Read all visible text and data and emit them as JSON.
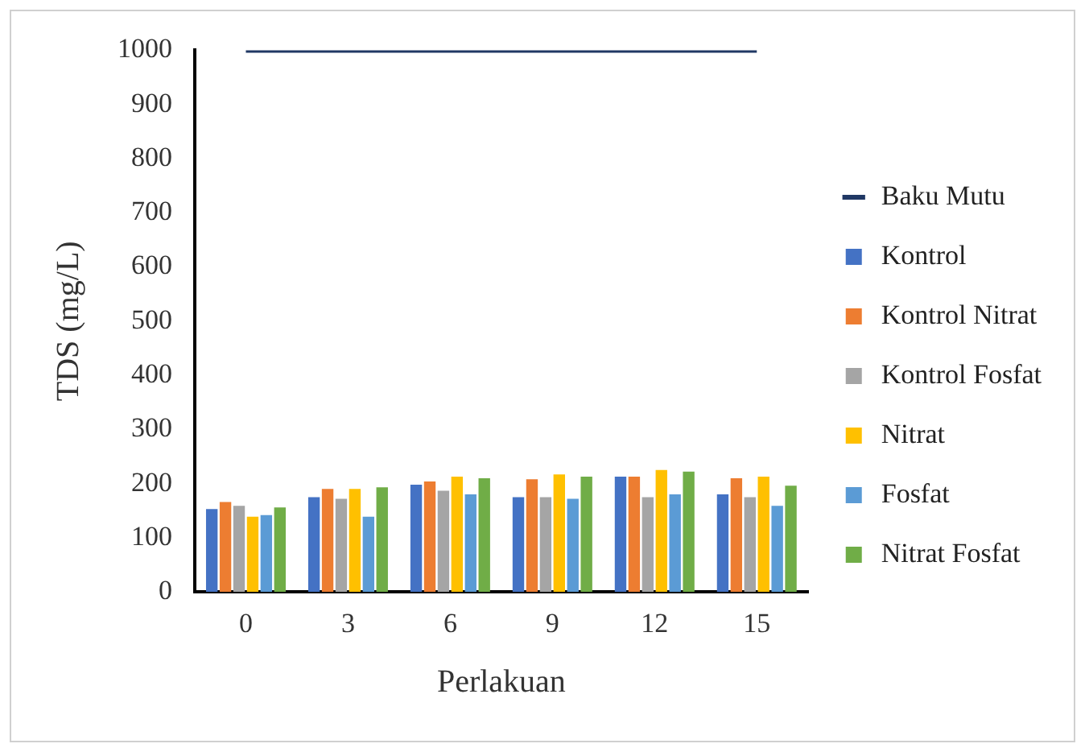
{
  "chart_data": {
    "type": "bar",
    "xlabel": "Perlakuan",
    "ylabel": "TDS (mg/L)",
    "categories": [
      "0",
      "3",
      "6",
      "9",
      "12",
      "15"
    ],
    "ylim": [
      0,
      1000
    ],
    "yticks": [
      0,
      100,
      200,
      300,
      400,
      500,
      600,
      700,
      800,
      900,
      1000
    ],
    "grid": false,
    "legend": "right",
    "series": [
      {
        "name": "Kontrol",
        "color": "#4472c4",
        "values": [
          153,
          175,
          198,
          175,
          213,
          180
        ]
      },
      {
        "name": "Kontrol Nitrat",
        "color": "#ed7d31",
        "values": [
          166,
          190,
          204,
          208,
          213,
          210
        ]
      },
      {
        "name": "Kontrol Fosfat",
        "color": "#a5a5a5",
        "values": [
          159,
          172,
          187,
          175,
          175,
          175
        ]
      },
      {
        "name": "Nitrat",
        "color": "#ffc000",
        "values": [
          139,
          190,
          213,
          217,
          225,
          213
        ]
      },
      {
        "name": "Fosfat",
        "color": "#5b9bd5",
        "values": [
          142,
          139,
          180,
          172,
          180,
          159
        ]
      },
      {
        "name": "Nitrat Fosfat",
        "color": "#70ad47",
        "values": [
          156,
          193,
          210,
          213,
          222,
          196
        ]
      },
      {
        "name": "Baku Mutu",
        "type": "line",
        "color": "#203864",
        "values": [
          1000,
          1000,
          1000,
          1000,
          1000,
          1000
        ]
      }
    ]
  }
}
